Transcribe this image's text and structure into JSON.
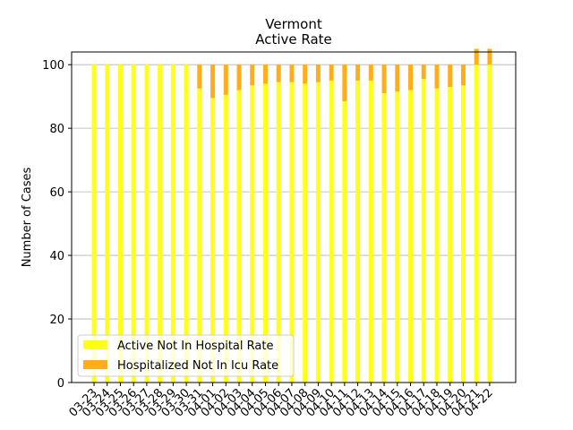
{
  "chart_data": {
    "type": "bar",
    "stacked": true,
    "title": "Vermont",
    "subtitle": "Active Rate",
    "xlabel": "",
    "ylabel": "Number of Cases",
    "ylim": [
      0,
      104
    ],
    "yticks": [
      0,
      20,
      40,
      60,
      80,
      100
    ],
    "grid": "horizontal",
    "legend_position": "lower-left",
    "categories": [
      "03-23",
      "03-24",
      "03-25",
      "03-26",
      "03-27",
      "03-28",
      "03-29",
      "03-30",
      "03-31",
      "04-01",
      "04-02",
      "04-03",
      "04-04",
      "04-05",
      "04-06",
      "04-07",
      "04-08",
      "04-09",
      "04-10",
      "04-11",
      "04-12",
      "04-13",
      "04-14",
      "04-15",
      "04-16",
      "04-17",
      "04-18",
      "04-19",
      "04-20",
      "04-21",
      "04-22"
    ],
    "series": [
      {
        "name": "Active Not In Hospital Rate",
        "color": "#ffff1a",
        "values": [
          100,
          100,
          100,
          100,
          100,
          100,
          100,
          100,
          92.5,
          89.5,
          90.5,
          92,
          93.5,
          94,
          94.5,
          94.5,
          94,
          94.5,
          95,
          88.5,
          95,
          95,
          91,
          91.5,
          92,
          95.5,
          92.5,
          93,
          93.5,
          100,
          100
        ]
      },
      {
        "name": "Hospitalized Not In Icu Rate",
        "color": "#ffae1a",
        "values": [
          0,
          0,
          0,
          0,
          0,
          0,
          0,
          0,
          7.5,
          10.5,
          9.5,
          8,
          6.5,
          6,
          5.5,
          5.5,
          6,
          5.5,
          5,
          11.5,
          5,
          5,
          9,
          8.5,
          8,
          4.5,
          7.5,
          7,
          6.5,
          5,
          5
        ]
      }
    ]
  }
}
